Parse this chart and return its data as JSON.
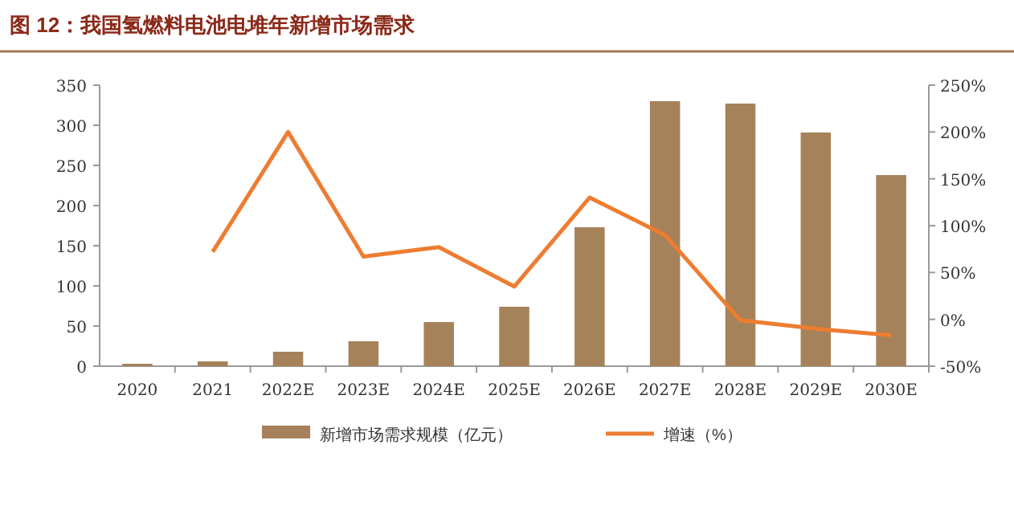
{
  "chart_data": {
    "type": "bar",
    "title": "图 12：我国氢燃料电池电堆年新增市场需求",
    "categories": [
      "2020",
      "2021",
      "2022E",
      "2023E",
      "2024E",
      "2025E",
      "2026E",
      "2027E",
      "2028E",
      "2029E",
      "2030E"
    ],
    "series": [
      {
        "name": "新增市场需求规模（亿元）",
        "color": "#a6825a",
        "values": [
          3,
          6,
          18,
          31,
          55,
          74,
          173,
          330,
          327,
          291,
          238
        ]
      },
      {
        "name": "增速（%）",
        "type": "line",
        "axis": "y2",
        "color": "#ed7d31",
        "values": [
          null,
          72,
          200,
          67,
          77,
          35,
          130,
          90,
          -1,
          -10,
          -17
        ]
      }
    ],
    "ylim": [
      0,
      350
    ],
    "yticks": [
      0,
      50,
      100,
      150,
      200,
      250,
      300,
      350
    ],
    "y2lim": [
      -50,
      250
    ],
    "y2ticks": [
      {
        "value": -50,
        "label": "-50%"
      },
      {
        "value": 0,
        "label": "0%"
      },
      {
        "value": 50,
        "label": "50%"
      },
      {
        "value": 100,
        "label": "100%"
      },
      {
        "value": 150,
        "label": "150%"
      },
      {
        "value": 200,
        "label": "200%"
      },
      {
        "value": 250,
        "label": "250%"
      }
    ],
    "legend": "bottom",
    "grid": false
  }
}
